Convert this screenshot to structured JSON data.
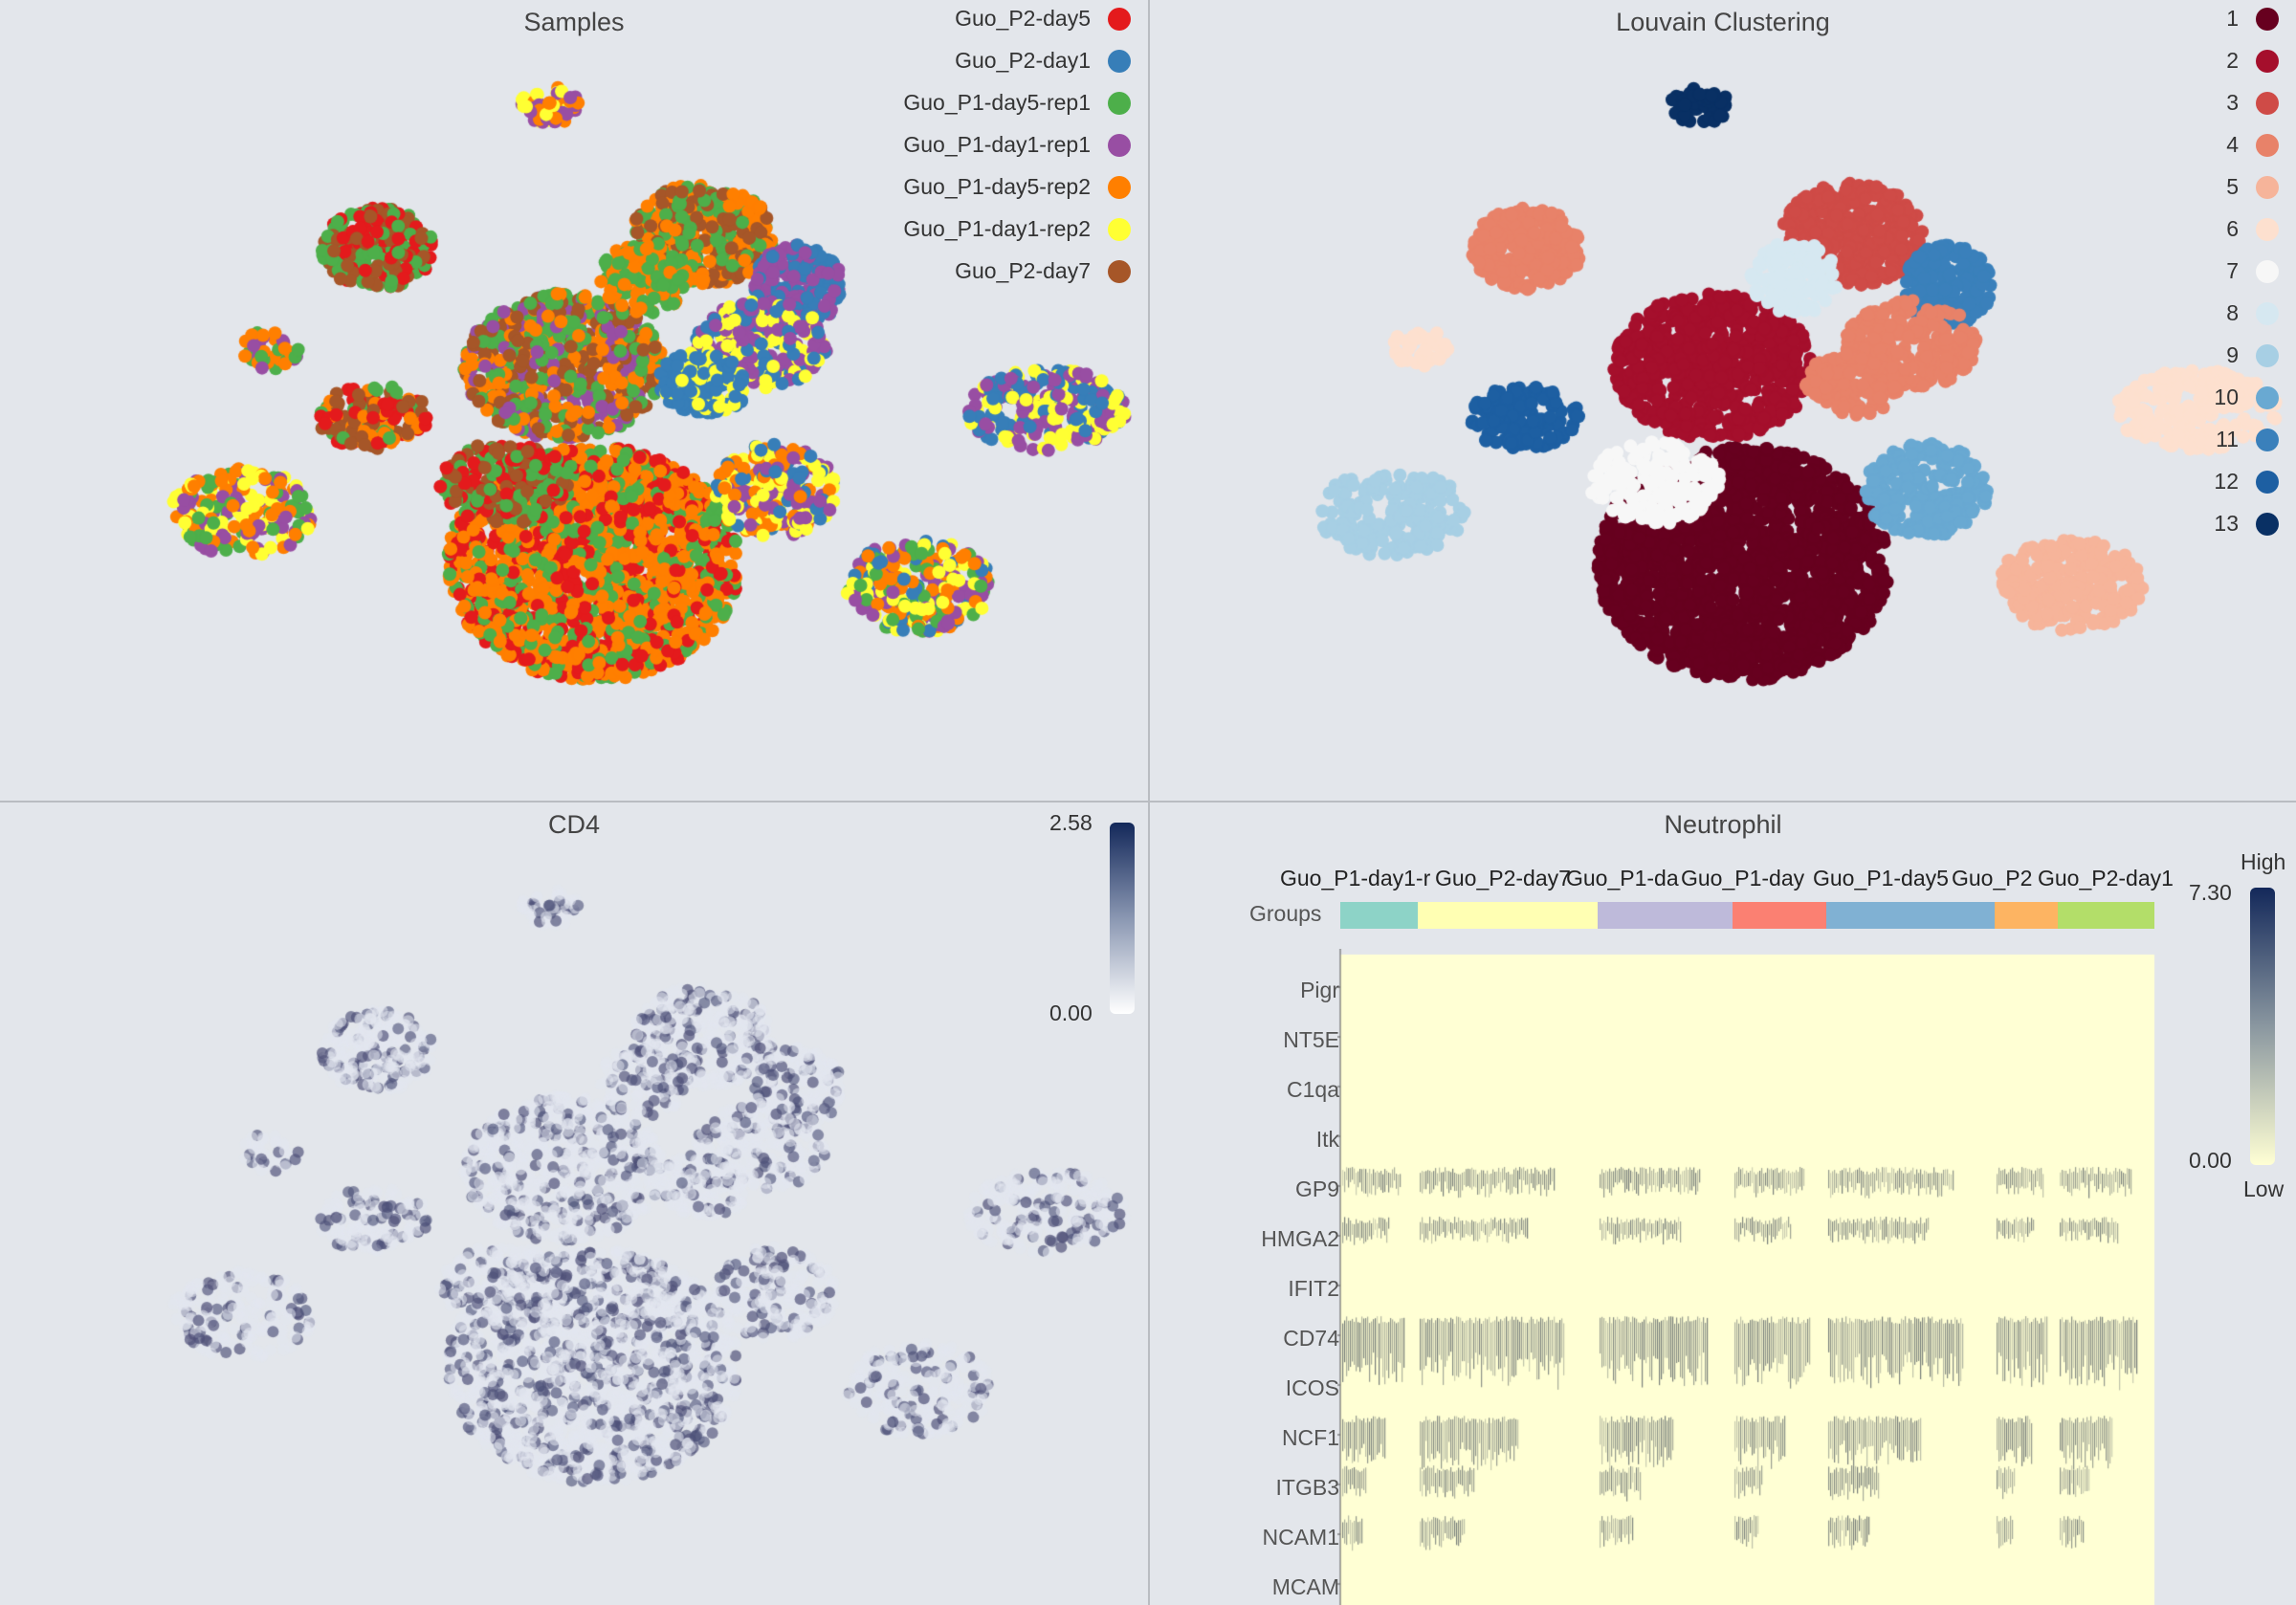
{
  "panels": {
    "samples": {
      "title": "Samples",
      "legend": [
        {
          "label": "Guo_P2-day5",
          "color": "#e41a1c"
        },
        {
          "label": "Guo_P2-day1",
          "color": "#377eb8"
        },
        {
          "label": "Guo_P1-day5-rep1",
          "color": "#4daf4a"
        },
        {
          "label": "Guo_P1-day1-rep1",
          "color": "#984ea3"
        },
        {
          "label": "Guo_P1-day5-rep2",
          "color": "#ff7f00"
        },
        {
          "label": "Guo_P1-day1-rep2",
          "color": "#ffff33"
        },
        {
          "label": "Guo_P2-day7",
          "color": "#a65628"
        }
      ]
    },
    "louvain": {
      "title": "Louvain Clustering",
      "legend": [
        {
          "label": "1",
          "color": "#67001f"
        },
        {
          "label": "2",
          "color": "#a50f2c"
        },
        {
          "label": "3",
          "color": "#cf4b47"
        },
        {
          "label": "4",
          "color": "#e88269"
        },
        {
          "label": "5",
          "color": "#f6b49a"
        },
        {
          "label": "6",
          "color": "#fde0cf"
        },
        {
          "label": "7",
          "color": "#f7f7f7"
        },
        {
          "label": "8",
          "color": "#d6e8f1"
        },
        {
          "label": "9",
          "color": "#a7cfe4"
        },
        {
          "label": "10",
          "color": "#69a9d2"
        },
        {
          "label": "11",
          "color": "#3a80bb"
        },
        {
          "label": "12",
          "color": "#1d5fa2"
        },
        {
          "label": "13",
          "color": "#093064"
        }
      ]
    },
    "cd4": {
      "title": "CD4",
      "scale_max": "2.58",
      "scale_min": "0.00",
      "color_high": "#13285a",
      "color_low": "#ffffff"
    },
    "neutrophil": {
      "title": "Neutrophil",
      "groups_label": "Groups",
      "group_labels": [
        "Guo_P1-day1-r",
        "Guo_P2-day7",
        "Guo_P1-da",
        "Guo_P1-day",
        "Guo_P1-day5",
        "Guo_P2",
        "Guo_P2-day1"
      ],
      "group_colors": [
        "#8dd3c7",
        "#ffffb3",
        "#bebada",
        "#fb8072",
        "#80b1d3",
        "#fdb462",
        "#b3de69"
      ],
      "genes": [
        "Pigr",
        "NT5E",
        "C1qa",
        "Itk",
        "GP9",
        "HMGA2",
        "IFIT2",
        "CD74",
        "ICOS",
        "NCF1",
        "ITGB3",
        "NCAM1",
        "MCAM"
      ],
      "scale_high_label": "High",
      "scale_low_label": "Low",
      "scale_max": "7.30",
      "scale_min": "0.00",
      "heat_bg": "#ffffd4"
    }
  }
}
